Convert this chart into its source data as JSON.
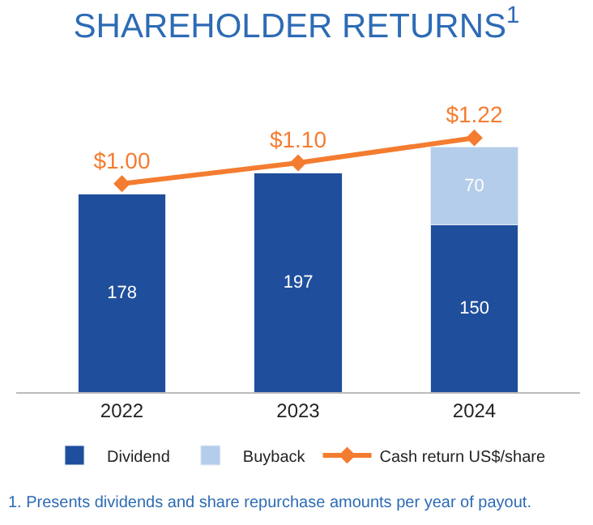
{
  "chart_data": {
    "type": "bar",
    "title": "SHAREHOLDER RETURNS$^{1}$",
    "categories": [
      "2022",
      "2023",
      "2024"
    ],
    "stacked": true,
    "data_labels": true,
    "tick_labels": "x",
    "legend": "bottom",
    "marker": "diamond",
    "series": [
      {
        "name": "Dividend",
        "color": "#1f4e9c",
        "values": [
          178,
          197,
          150
        ]
      },
      {
        "name": "Buyback",
        "color": "#b4cdea",
        "values": [
          null,
          null,
          70
        ]
      },
      {
        "name": "Cash return US$/share",
        "type": "line",
        "axis": "y2",
        "color": "#f47c30",
        "values": [
          1.0,
          1.1,
          1.22
        ],
        "value_labels": [
          "$1.00",
          "$1.10",
          "$1.22"
        ]
      }
    ],
    "annotations": [
      "1. Presents dividends and share repurchase amounts per year of payout."
    ]
  }
}
